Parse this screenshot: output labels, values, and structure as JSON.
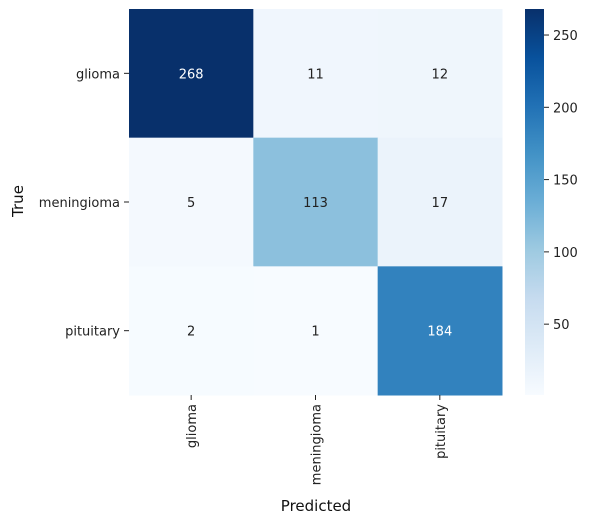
{
  "chart_data": {
    "type": "heatmap",
    "title": "",
    "xlabel": "Predicted",
    "ylabel": "True",
    "x_categories": [
      "glioma",
      "meningioma",
      "pituitary"
    ],
    "y_categories": [
      "glioma",
      "meningioma",
      "pituitary"
    ],
    "values": [
      [
        268,
        11,
        12
      ],
      [
        5,
        113,
        17
      ],
      [
        2,
        1,
        184
      ]
    ],
    "colormap": "Blues",
    "color_range": [
      1,
      268
    ],
    "colorbar_ticks": [
      50,
      100,
      150,
      200,
      250
    ],
    "grid": false,
    "legend": "colorbar-right"
  }
}
